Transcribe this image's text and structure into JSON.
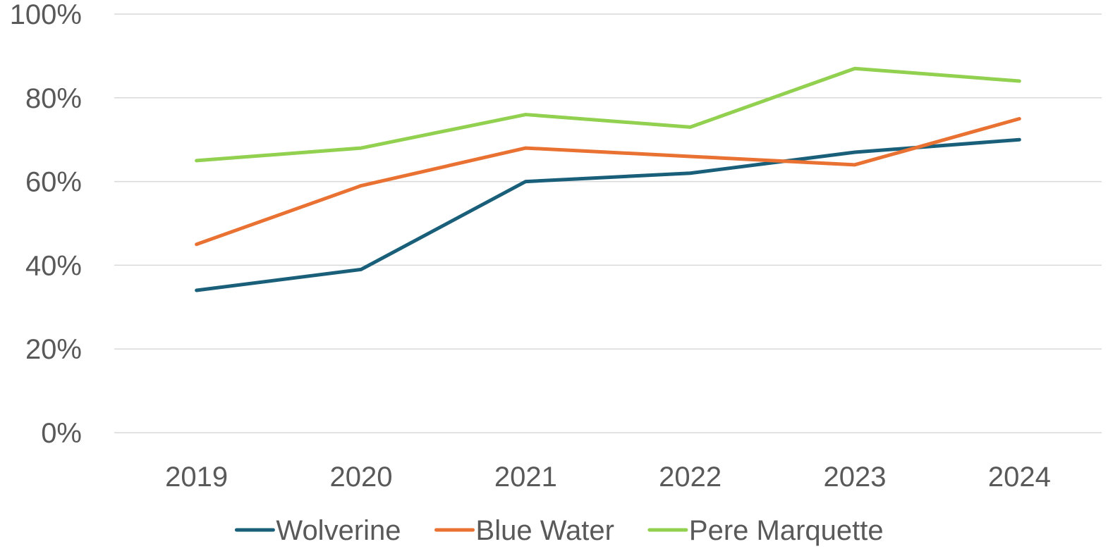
{
  "chart_data": {
    "type": "line",
    "categories": [
      "2019",
      "2020",
      "2021",
      "2022",
      "2023",
      "2024"
    ],
    "series": [
      {
        "name": "Wolverine",
        "color": "#1a5f7a",
        "values": [
          34,
          39,
          60,
          62,
          67,
          70
        ]
      },
      {
        "name": "Blue Water",
        "color": "#e97132",
        "values": [
          45,
          59,
          68,
          66,
          64,
          75
        ]
      },
      {
        "name": "Pere Marquette",
        "color": "#92d050",
        "values": [
          65,
          68,
          76,
          73,
          87,
          84
        ]
      }
    ],
    "y_ticks": [
      0,
      20,
      40,
      60,
      80,
      100
    ],
    "y_tick_labels": [
      "0%",
      "20%",
      "40%",
      "60%",
      "80%",
      "100%"
    ],
    "ylim": [
      0,
      100
    ],
    "grid": true,
    "legend_position": "bottom",
    "title": "",
    "xlabel": "",
    "ylabel": ""
  }
}
